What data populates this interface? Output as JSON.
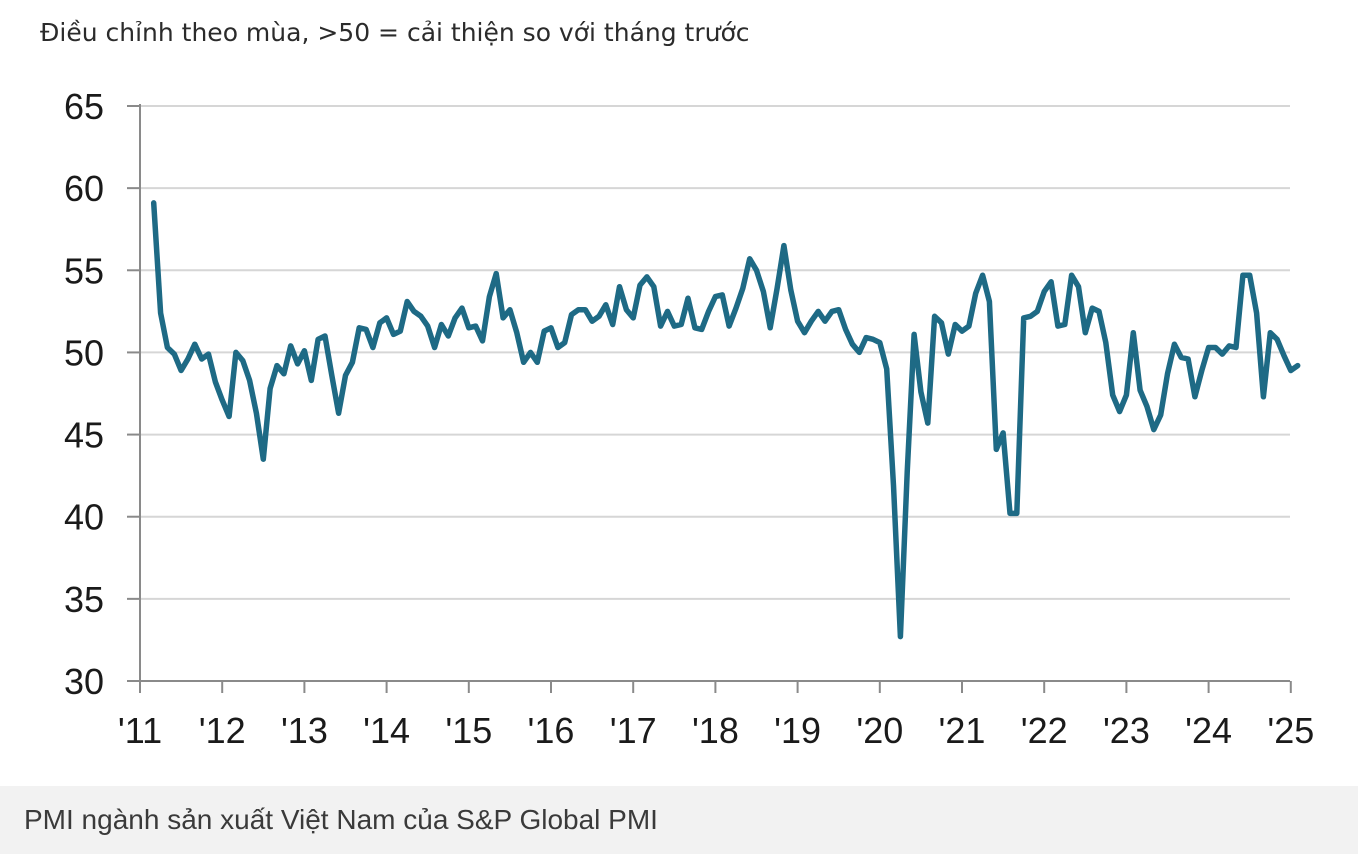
{
  "subtitle": "Điều chỉnh theo mùa, >50 = cải thiện so với tháng trước",
  "caption": "PMI ngành sản xuất Việt Nam của S&P Global PMI",
  "chart_data": {
    "type": "line",
    "title": "",
    "subtitle": "Điều chỉnh theo mùa, >50 = cải thiện so với tháng trước",
    "xlabel": "",
    "ylabel": "",
    "ylim": [
      30,
      65
    ],
    "yticks": [
      65,
      60,
      55,
      50,
      45,
      40,
      35,
      30
    ],
    "xticks": [
      "'11",
      "'12",
      "'13",
      "'14",
      "'15",
      "'16",
      "'17",
      "'18",
      "'19",
      "'20",
      "'21",
      "'22",
      "'23",
      "'24",
      "'25"
    ],
    "grid": "horizontal",
    "line_color": "#1e6a85",
    "x_start": "2011-03",
    "x_frequency": "monthly",
    "series": [
      {
        "values": [
          59.1,
          52.4,
          50.3,
          49.9,
          48.9,
          49.6,
          50.5,
          49.6,
          49.9,
          48.2,
          47.1,
          46.1,
          50.0,
          49.5,
          48.3,
          46.3,
          43.5,
          47.8,
          49.2,
          48.7,
          50.4,
          49.3,
          50.1,
          48.3,
          50.8,
          51.0,
          48.6,
          46.3,
          48.6,
          49.4,
          51.5,
          51.4,
          50.3,
          51.8,
          52.1,
          51.1,
          51.3,
          53.1,
          52.5,
          52.2,
          51.6,
          50.3,
          51.7,
          51.0,
          52.1,
          52.7,
          51.5,
          51.6,
          50.7,
          53.4,
          54.8,
          52.1,
          52.6,
          51.2,
          49.4,
          50.0,
          49.4,
          51.3,
          51.5,
          50.3,
          50.6,
          52.3,
          52.6,
          52.6,
          51.9,
          52.2,
          52.9,
          51.7,
          54.0,
          52.6,
          52.1,
          54.1,
          54.6,
          54.0,
          51.6,
          52.5,
          51.6,
          51.7,
          53.3,
          51.5,
          51.4,
          52.5,
          53.4,
          53.5,
          51.6,
          52.7,
          53.9,
          55.7,
          55.0,
          53.7,
          51.5,
          53.9,
          56.5,
          53.8,
          51.9,
          51.2,
          51.9,
          52.5,
          51.9,
          52.5,
          52.6,
          51.4,
          50.5,
          50.0,
          50.9,
          50.8,
          50.6,
          49.0,
          41.9,
          32.7,
          42.7,
          51.1,
          47.6,
          45.7,
          52.2,
          51.8,
          49.9,
          51.7,
          51.3,
          51.6,
          53.6,
          54.7,
          53.1,
          44.1,
          45.1,
          40.2,
          40.2,
          52.1,
          52.2,
          52.5,
          53.7,
          54.3,
          51.6,
          51.7,
          54.7,
          54.0,
          51.2,
          52.7,
          52.5,
          50.6,
          47.4,
          46.4,
          47.4,
          51.2,
          47.7,
          46.7,
          45.3,
          46.2,
          48.7,
          50.5,
          49.7,
          49.6,
          47.3,
          48.9,
          50.3,
          50.3,
          49.9,
          50.4,
          50.3,
          54.7,
          54.7,
          52.4,
          47.3,
          51.2,
          50.8,
          49.8,
          48.9,
          49.2
        ]
      }
    ]
  }
}
